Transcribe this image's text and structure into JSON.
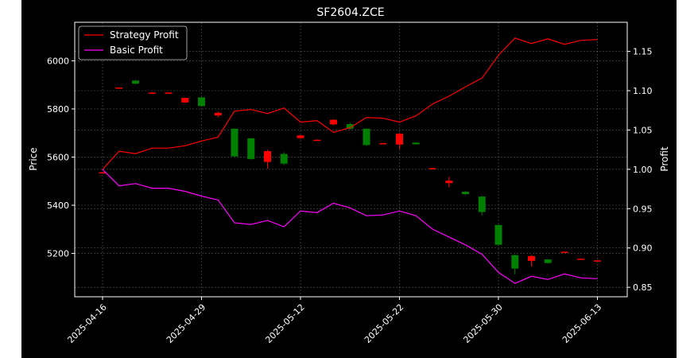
{
  "chart_data": {
    "type": "candlestick",
    "title": "SF2604.ZCE",
    "xlabel": "",
    "ylabel_left": "Price",
    "ylabel_right": "Profit",
    "x_tick_labels": [
      "2025-04-16",
      "2025-04-29",
      "2025-05-12",
      "2025-05-22",
      "2025-05-30",
      "2025-06-13"
    ],
    "y_left_ticks": [
      "5200",
      "5400",
      "5600",
      "5800",
      "6000"
    ],
    "y_right_ticks": [
      "0.85",
      "0.90",
      "0.95",
      "1.00",
      "1.05",
      "1.10",
      "1.15"
    ],
    "ylim_left": [
      5020,
      6160
    ],
    "ylim_right": [
      0.838,
      1.187
    ],
    "grid": true,
    "legend_position": "upper-left",
    "colors": {
      "background": "#000000",
      "up": "#ff0000",
      "down": "#008000",
      "strategy": "#ff0000",
      "basic": "#ff00ff",
      "grid": "#b0b0b0",
      "axes": "#ffffff"
    },
    "candles": [
      {
        "o": 5535,
        "h": 5538,
        "l": 5533,
        "c": 5537
      },
      {
        "o": 5888,
        "h": 5889,
        "l": 5886,
        "c": 5889
      },
      {
        "o": 5918,
        "h": 5920,
        "l": 5903,
        "c": 5905
      },
      {
        "o": 5867,
        "h": 5869,
        "l": 5865,
        "c": 5868
      },
      {
        "o": 5867,
        "h": 5869,
        "l": 5865,
        "c": 5868
      },
      {
        "o": 5827,
        "h": 5847,
        "l": 5826,
        "c": 5846
      },
      {
        "o": 5848,
        "h": 5849,
        "l": 5810,
        "c": 5812
      },
      {
        "o": 5773,
        "h": 5789,
        "l": 5765,
        "c": 5784
      },
      {
        "o": 5718,
        "h": 5719,
        "l": 5600,
        "c": 5603
      },
      {
        "o": 5678,
        "h": 5679,
        "l": 5590,
        "c": 5592
      },
      {
        "o": 5580,
        "h": 5630,
        "l": 5552,
        "c": 5625
      },
      {
        "o": 5613,
        "h": 5620,
        "l": 5567,
        "c": 5573
      },
      {
        "o": 5679,
        "h": 5692,
        "l": 5675,
        "c": 5690
      },
      {
        "o": 5671,
        "h": 5673,
        "l": 5669,
        "c": 5672
      },
      {
        "o": 5736,
        "h": 5757,
        "l": 5732,
        "c": 5755
      },
      {
        "o": 5737,
        "h": 5743,
        "l": 5714,
        "c": 5718
      },
      {
        "o": 5718,
        "h": 5719,
        "l": 5647,
        "c": 5650
      },
      {
        "o": 5657,
        "h": 5659,
        "l": 5655,
        "c": 5658
      },
      {
        "o": 5652,
        "h": 5700,
        "l": 5633,
        "c": 5697
      },
      {
        "o": 5660,
        "h": 5662,
        "l": 5652,
        "c": 5653
      },
      {
        "o": 5553,
        "h": 5555,
        "l": 5551,
        "c": 5554
      },
      {
        "o": 5492,
        "h": 5518,
        "l": 5475,
        "c": 5502
      },
      {
        "o": 5456,
        "h": 5458,
        "l": 5444,
        "c": 5446
      },
      {
        "o": 5436,
        "h": 5439,
        "l": 5358,
        "c": 5372
      },
      {
        "o": 5318,
        "h": 5320,
        "l": 5234,
        "c": 5236
      },
      {
        "o": 5193,
        "h": 5195,
        "l": 5113,
        "c": 5137
      },
      {
        "o": 5169,
        "h": 5193,
        "l": 5146,
        "c": 5189
      },
      {
        "o": 5175,
        "h": 5177,
        "l": 5158,
        "c": 5160
      },
      {
        "o": 5205,
        "h": 5208,
        "l": 5203,
        "c": 5207
      },
      {
        "o": 5177,
        "h": 5179,
        "l": 5175,
        "c": 5178
      },
      {
        "o": 5170,
        "h": 5172,
        "l": 5168,
        "c": 5171
      }
    ],
    "series": [
      {
        "name": "Strategy Profit",
        "color": "#ff0000",
        "values": [
          1.0,
          1.023,
          1.02,
          1.027,
          1.027,
          1.03,
          1.036,
          1.041,
          1.074,
          1.076,
          1.071,
          1.078,
          1.06,
          1.062,
          1.047,
          1.053,
          1.066,
          1.065,
          1.06,
          1.068,
          1.083,
          1.093,
          1.105,
          1.116,
          1.145,
          1.167,
          1.16,
          1.166,
          1.159,
          1.164,
          1.165
        ]
      },
      {
        "name": "Basic Profit",
        "color": "#ff00ff",
        "values": [
          1.0,
          0.979,
          0.982,
          0.976,
          0.976,
          0.972,
          0.966,
          0.961,
          0.932,
          0.93,
          0.935,
          0.927,
          0.947,
          0.945,
          0.957,
          0.951,
          0.941,
          0.942,
          0.947,
          0.941,
          0.924,
          0.914,
          0.904,
          0.892,
          0.869,
          0.855,
          0.864,
          0.86,
          0.867,
          0.862,
          0.861
        ]
      }
    ]
  }
}
